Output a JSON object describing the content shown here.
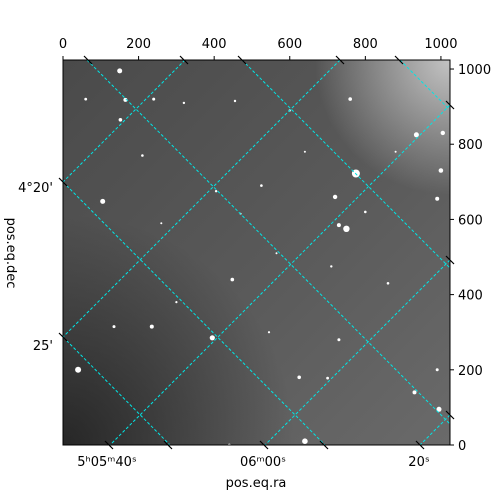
{
  "chart_data": {
    "type": "image",
    "description": "astronomical grayscale image with equatorial coordinate grid",
    "xlabel": "pos.eq.ra",
    "ylabel": "pos.eq.dec",
    "pixel_axes": {
      "x_ticks": [
        0,
        200,
        400,
        600,
        800,
        1000
      ],
      "y_ticks": [
        0,
        200,
        400,
        600,
        800,
        1000
      ],
      "xlim": [
        0,
        1024
      ],
      "ylim": [
        0,
        1024
      ]
    },
    "world_ticks": {
      "ra_labels": [
        "5ʰ05ᵐ40ˢ",
        "06ᵐ00ˢ",
        "20ˢ"
      ],
      "dec_labels": [
        "4°20'",
        "25'"
      ]
    },
    "grid_color": "#00e5e5",
    "image_colormap": "gray",
    "stars": [
      [
        150,
        995,
        2.5
      ],
      [
        165,
        918,
        2.0
      ],
      [
        152,
        865,
        1.8
      ],
      [
        240,
        920,
        1.5
      ],
      [
        455,
        915,
        1.2
      ],
      [
        760,
        920,
        1.8
      ],
      [
        1005,
        830,
        2.2
      ],
      [
        935,
        825,
        2.5
      ],
      [
        1000,
        730,
        2.3
      ],
      [
        775,
        722,
        4.0
      ],
      [
        720,
        660,
        2.2
      ],
      [
        105,
        648,
        2.5
      ],
      [
        730,
        585,
        2.0
      ],
      [
        750,
        575,
        3.2
      ],
      [
        525,
        690,
        1.3
      ],
      [
        405,
        675,
        1.2
      ],
      [
        470,
        615,
        1.0
      ],
      [
        990,
        655,
        2.0
      ],
      [
        565,
        510,
        1.0
      ],
      [
        710,
        475,
        1.2
      ],
      [
        448,
        440,
        1.8
      ],
      [
        135,
        315,
        1.5
      ],
      [
        235,
        315,
        2.0
      ],
      [
        395,
        285,
        2.6
      ],
      [
        730,
        280,
        1.5
      ],
      [
        990,
        200,
        1.5
      ],
      [
        40,
        200,
        3.0
      ],
      [
        625,
        180,
        1.8
      ],
      [
        700,
        178,
        1.4
      ],
      [
        930,
        140,
        2.0
      ],
      [
        995,
        95,
        2.5
      ],
      [
        640,
        10,
        2.8
      ],
      [
        440,
        0,
        1.4
      ],
      [
        320,
        910,
        1.2
      ],
      [
        600,
        890,
        1.2
      ],
      [
        800,
        620,
        1.3
      ],
      [
        860,
        430,
        1.3
      ],
      [
        300,
        380,
        1.1
      ],
      [
        545,
        300,
        1.1
      ],
      [
        210,
        770,
        1.3
      ],
      [
        260,
        590,
        1.0
      ],
      [
        640,
        780,
        1.0
      ],
      [
        880,
        780,
        1.0
      ],
      [
        60,
        920,
        1.4
      ]
    ]
  }
}
